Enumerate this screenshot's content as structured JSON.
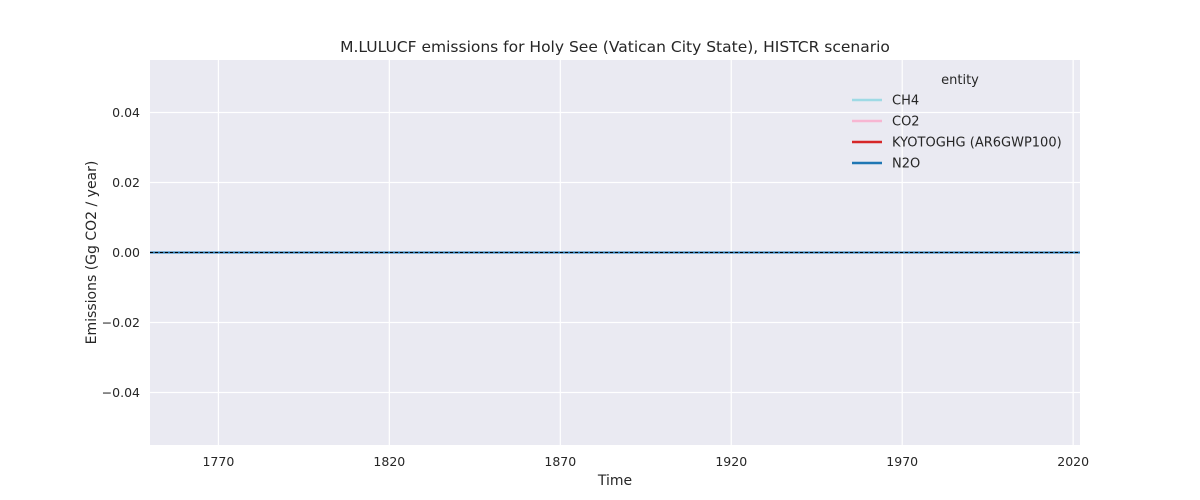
{
  "chart_data": {
    "type": "line",
    "title": "M.LULUCF emissions for Holy See (Vatican City State), HISTCR scenario",
    "xlabel": "Time",
    "ylabel": "Emissions (Gg CO2 / year)",
    "xlim": [
      1750,
      2022
    ],
    "ylim": [
      -0.055,
      0.055
    ],
    "xticks": [
      1770,
      1820,
      1870,
      1920,
      1970,
      2020
    ],
    "yticks": [
      -0.04,
      -0.02,
      0.0,
      0.02,
      0.04
    ],
    "ytick_labels": [
      "−0.04",
      "−0.02",
      "0.00",
      "0.02",
      "0.04"
    ],
    "grid": true,
    "legend": {
      "title": "entity",
      "placement": "top-right"
    },
    "x": [
      1750,
      2022
    ],
    "series": [
      {
        "name": "CH4",
        "color": "#9edae5",
        "values": [
          0,
          0
        ]
      },
      {
        "name": "CO2",
        "color": "#f7b6d2",
        "values": [
          0,
          0
        ]
      },
      {
        "name": "KYOTOGHG (AR6GWP100)",
        "color": "#d62728",
        "values": [
          0,
          0
        ]
      },
      {
        "name": "N2O",
        "color": "#1f77b4",
        "values": [
          0,
          0
        ]
      }
    ],
    "reference_line": {
      "y": 0,
      "color": "#000000",
      "style": "dashed"
    }
  }
}
